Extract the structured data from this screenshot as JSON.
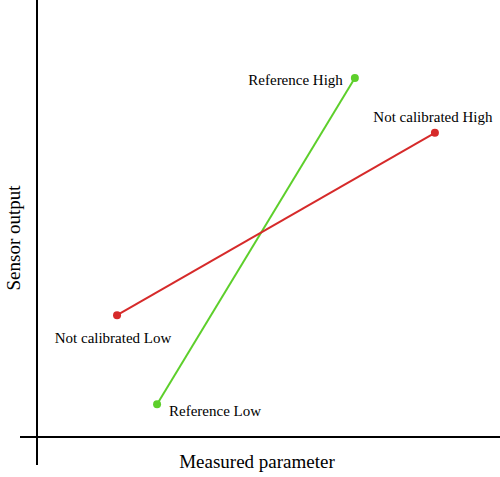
{
  "chart_data": {
    "type": "line",
    "x_label": "Measured parameter",
    "y_label": "Sensor output",
    "xlim": [
      0,
      100
    ],
    "ylim": [
      0,
      100
    ],
    "tick_labels": false,
    "series": [
      {
        "color": "#5dcf2b",
        "marker": "circle",
        "x": [
          26.1,
          69.1
        ],
        "values": [
          7.6,
          83.1
        ],
        "labels": [
          "Reference Low",
          "Reference High"
        ]
      },
      {
        "color": "#d62a2a",
        "marker": "circle",
        "x": [
          17.4,
          86.5
        ],
        "values": [
          28.2,
          70.4
        ],
        "labels": [
          "Not calibrated Low",
          "Not calibrated High"
        ]
      }
    ]
  }
}
